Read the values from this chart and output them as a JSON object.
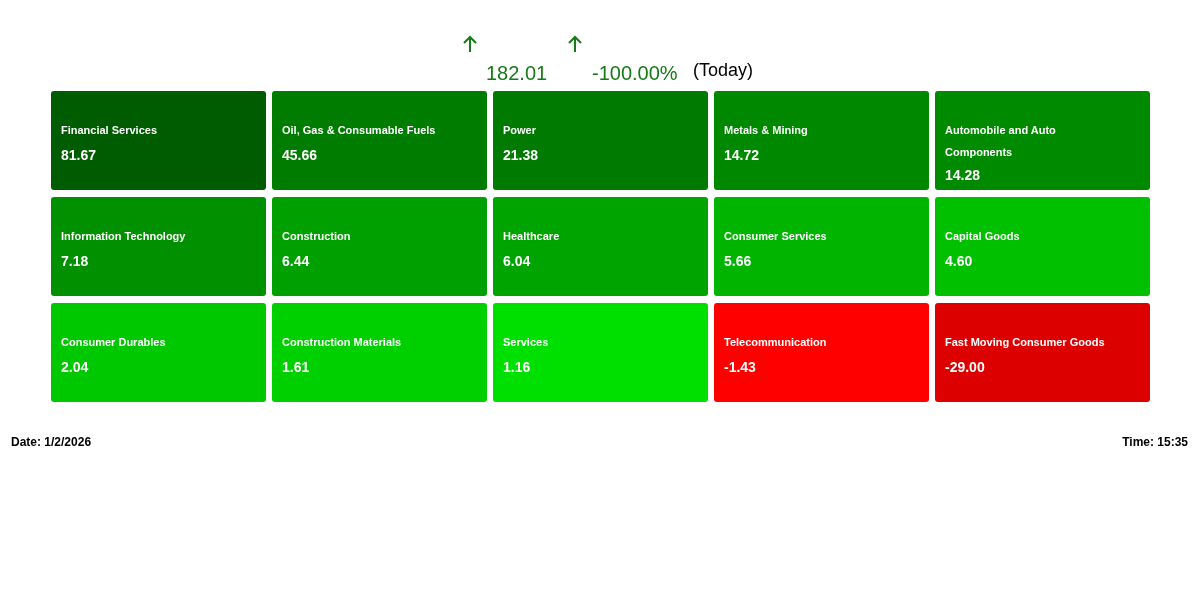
{
  "chart_data": {
    "type": "other",
    "categories": [
      "Financial Services",
      "Oil, Gas & Consumable Fuels",
      "Power",
      "Metals & Mining",
      "Automobile and Auto Components",
      "Information Technology",
      "Construction",
      "Healthcare",
      "Consumer Services",
      "Capital Goods",
      "Consumer Durables",
      "Construction Materials",
      "Services",
      "Telecommunication",
      "Fast Moving Consumer Goods"
    ],
    "data_labels": true,
    "values": [
      81.67,
      45.66,
      21.38,
      14.72,
      14.28,
      7.18,
      6.44,
      6.04,
      5.66,
      4.6,
      2.04,
      1.61,
      1.16,
      -1.43,
      -29.0
    ],
    "value_labels": [
      "81.67",
      "45.66",
      "21.38",
      "14.72",
      "14.28",
      "7.18",
      "6.44",
      "6.04",
      "5.66",
      "4.60",
      "2.04",
      "1.61",
      "1.16",
      "-1.43",
      "-29.00"
    ],
    "colors": [
      "#005c00",
      "#007c00",
      "#007a00",
      "#008800",
      "#008a00",
      "#009000",
      "#00a000",
      "#00a400",
      "#00b400",
      "#00c000",
      "#00c800",
      "#00d000",
      "#00e000",
      "#ff0000",
      "#dc0000"
    ],
    "annotations": [
      "182.01",
      "-100.00%",
      "(Today)",
      "Date: 1/2/2026",
      "Time: 15:35"
    ]
  }
}
